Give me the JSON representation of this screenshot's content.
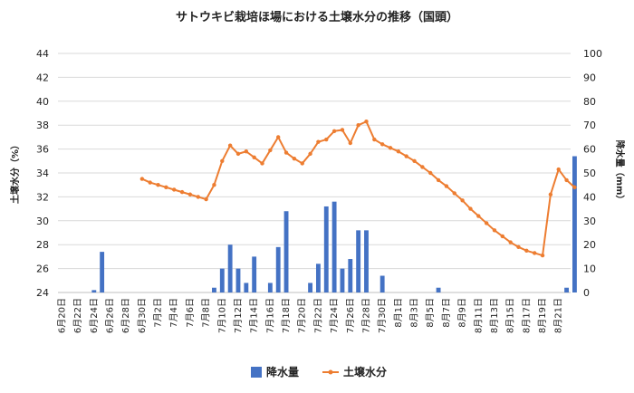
{
  "chart_data": {
    "type": "bar+line",
    "title": "サトウキビ栽培ほ場における土壌水分の推移（国頭）",
    "ylabel_left": "土壌水分（%）",
    "ylabel_right": "降水量（mm）",
    "ylim_left": [
      24,
      44
    ],
    "yticks_left": [
      24,
      26,
      28,
      30,
      32,
      34,
      36,
      38,
      40,
      42,
      44
    ],
    "ylim_right": [
      0,
      100
    ],
    "yticks_right": [
      0,
      10,
      20,
      30,
      40,
      50,
      60,
      70,
      80,
      90,
      100
    ],
    "x_tick_labels": [
      "6月20日",
      "6月22日",
      "6月24日",
      "6月26日",
      "6月28日",
      "6月30日",
      "7月2日",
      "7月4日",
      "7月6日",
      "7月8日",
      "7月10日",
      "7月12日",
      "7月14日",
      "7月16日",
      "7月18日",
      "7月20日",
      "7月22日",
      "7月24日",
      "7月26日",
      "7月28日",
      "7月30日",
      "8月1日",
      "8月3日",
      "8月5日",
      "8月7日",
      "8月9日",
      "8月11日",
      "8月13日",
      "8月15日",
      "8月17日",
      "8月19日",
      "8月21日"
    ],
    "series": [
      {
        "name": "降水量",
        "type": "bar",
        "axis": "right",
        "color": "#4472C4",
        "points": [
          [
            4,
            1
          ],
          [
            5,
            17
          ],
          [
            19,
            2
          ],
          [
            20,
            10
          ],
          [
            21,
            20
          ],
          [
            22,
            10
          ],
          [
            23,
            4
          ],
          [
            24,
            15
          ],
          [
            26,
            4
          ],
          [
            27,
            19
          ],
          [
            28,
            34
          ],
          [
            31,
            4
          ],
          [
            32,
            12
          ],
          [
            33,
            36
          ],
          [
            34,
            38
          ],
          [
            35,
            10
          ],
          [
            36,
            14
          ],
          [
            37,
            26
          ],
          [
            38,
            26
          ],
          [
            40,
            7
          ],
          [
            47,
            2
          ],
          [
            63,
            2
          ],
          [
            64,
            57
          ]
        ]
      },
      {
        "name": "土壌水分",
        "type": "line",
        "axis": "left",
        "color": "#ED7D31",
        "points": [
          [
            10,
            33.5
          ],
          [
            11,
            33.2
          ],
          [
            12,
            33.0
          ],
          [
            13,
            32.8
          ],
          [
            14,
            32.6
          ],
          [
            15,
            32.4
          ],
          [
            16,
            32.2
          ],
          [
            17,
            32.0
          ],
          [
            18,
            31.8
          ],
          [
            19,
            33.0
          ],
          [
            20,
            35.0
          ],
          [
            21,
            36.3
          ],
          [
            22,
            35.6
          ],
          [
            23,
            35.8
          ],
          [
            24,
            35.3
          ],
          [
            25,
            34.8
          ],
          [
            26,
            35.9
          ],
          [
            27,
            37.0
          ],
          [
            28,
            35.7
          ],
          [
            29,
            35.2
          ],
          [
            30,
            34.8
          ],
          [
            31,
            35.6
          ],
          [
            32,
            36.6
          ],
          [
            33,
            36.8
          ],
          [
            34,
            37.5
          ],
          [
            35,
            37.6
          ],
          [
            36,
            36.5
          ],
          [
            37,
            38.0
          ],
          [
            38,
            38.3
          ],
          [
            39,
            36.8
          ],
          [
            40,
            36.4
          ],
          [
            41,
            36.1
          ],
          [
            42,
            35.8
          ],
          [
            43,
            35.4
          ],
          [
            44,
            35.0
          ],
          [
            45,
            34.5
          ],
          [
            46,
            34.0
          ],
          [
            47,
            33.4
          ],
          [
            48,
            32.9
          ],
          [
            49,
            32.3
          ],
          [
            50,
            31.7
          ],
          [
            51,
            31.0
          ],
          [
            52,
            30.4
          ],
          [
            53,
            29.8
          ],
          [
            54,
            29.2
          ],
          [
            55,
            28.7
          ],
          [
            56,
            28.2
          ],
          [
            57,
            27.8
          ],
          [
            58,
            27.5
          ],
          [
            59,
            27.3
          ],
          [
            60,
            27.1
          ],
          [
            61,
            32.2
          ],
          [
            62,
            34.3
          ],
          [
            63,
            33.4
          ],
          [
            64,
            32.8
          ]
        ]
      }
    ],
    "legend": {
      "placement": "bottom"
    }
  }
}
